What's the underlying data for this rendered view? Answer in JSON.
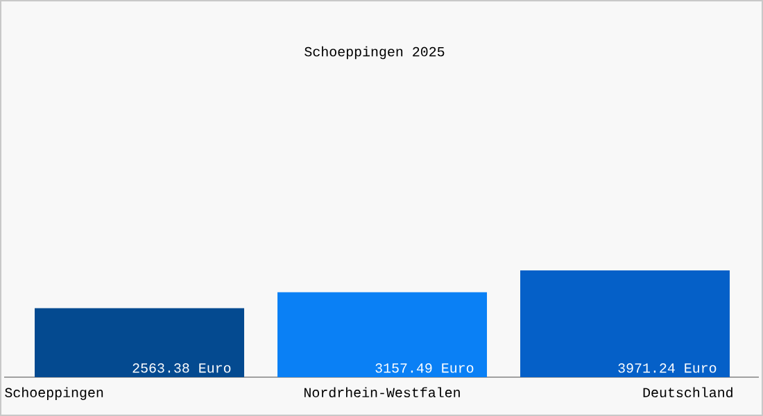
{
  "chart_data": {
    "type": "bar",
    "title": "Schoeppingen 2025",
    "categories": [
      "Schoeppingen",
      "Nordrhein-Westfalen",
      "Deutschland"
    ],
    "values": [
      2563.38,
      3157.49,
      3971.24
    ],
    "colors": [
      "#044a90",
      "#0a80f5",
      "#0560c8"
    ],
    "value_labels": [
      "2563.38 Euro",
      "3157.49 Euro",
      "3971.24 Euro"
    ]
  }
}
